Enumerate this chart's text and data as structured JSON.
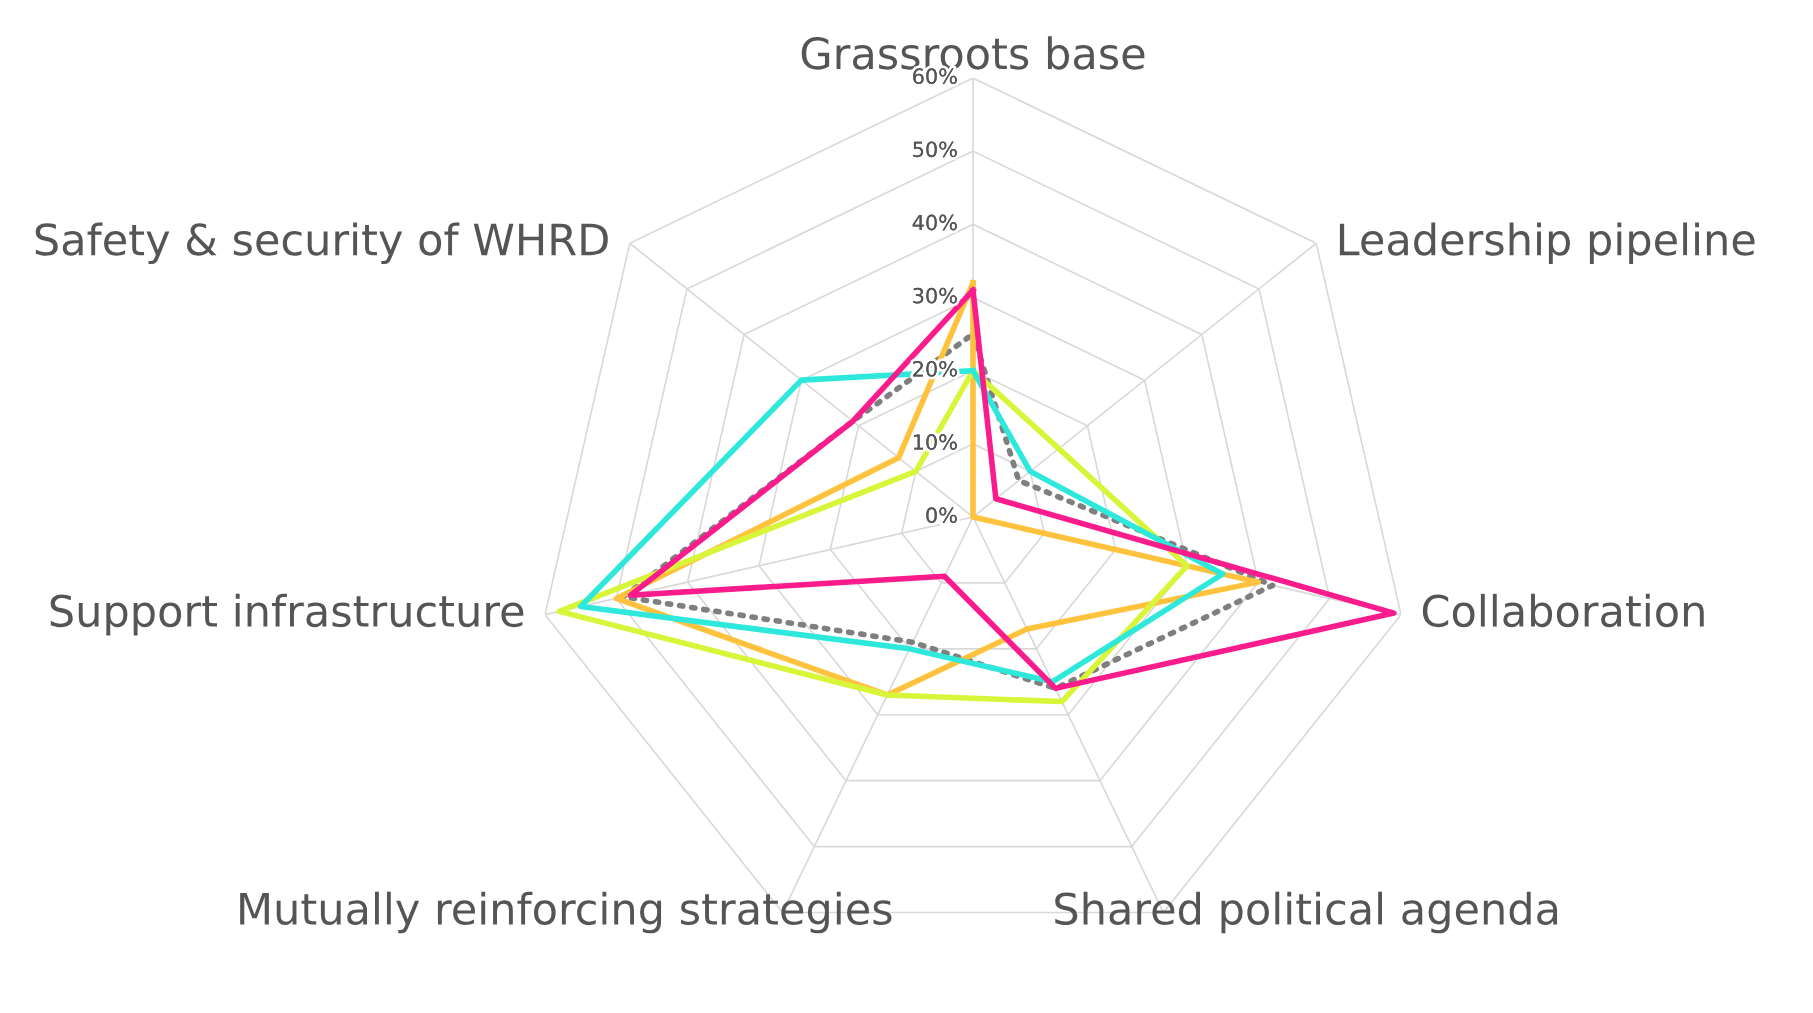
{
  "chart_data": {
    "type": "radar",
    "categories": [
      "Grassroots base",
      "Leadership pipeline",
      "Collaboration",
      "Shared political agenda",
      "Mutually reinforcing strategies",
      "Support infrastructure",
      "Safety & security of WHRD"
    ],
    "series": [
      {
        "color": "#7f7f7f",
        "line_style": "dotted",
        "values": [
          25,
          8,
          42,
          26,
          19,
          49,
          21
        ]
      },
      {
        "color": "#ffc23d",
        "values": [
          32,
          0,
          40,
          17,
          27,
          50,
          13
        ]
      },
      {
        "color": "#d8f53a",
        "values": [
          20,
          15,
          30,
          28,
          27,
          58,
          10
        ]
      },
      {
        "color": "#2ee8dc",
        "values": [
          20,
          10,
          35,
          25,
          20,
          55,
          30
        ]
      },
      {
        "color": "#fa1c8c",
        "values": [
          31,
          4,
          59,
          26,
          9,
          48,
          21
        ]
      }
    ],
    "ylim": [
      0,
      60
    ],
    "yticks": [
      {
        "value": 0,
        "label": "0%"
      },
      {
        "value": 10,
        "label": "10%"
      },
      {
        "value": 20,
        "label": "20%"
      },
      {
        "value": 30,
        "label": "30%"
      },
      {
        "value": 40,
        "label": "40%"
      },
      {
        "value": 50,
        "label": "50%"
      },
      {
        "value": 60,
        "label": "60%"
      }
    ],
    "grid": true,
    "line_style": "solid"
  }
}
